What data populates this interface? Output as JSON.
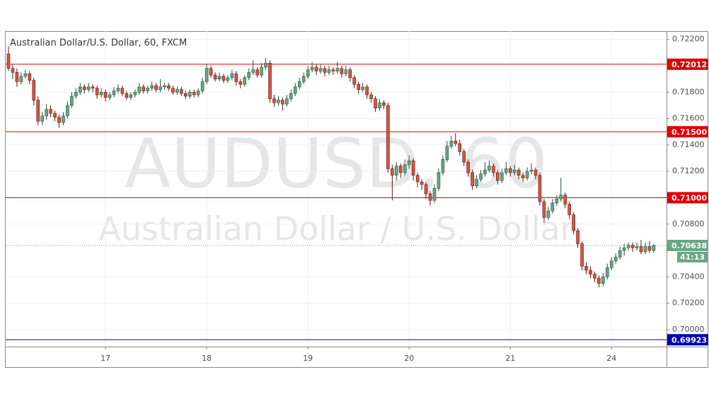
{
  "chart_data": {
    "type": "candlestick",
    "title": "Australian Dollar/U.S. Dollar, 60, FXCM",
    "watermark": "AUDUSD, 60",
    "watermark_subtitle": "Australian Dollar / U.S. Dollar",
    "up_color": "#6ba583",
    "up_border": "#225437",
    "down_color": "#d75442",
    "down_border": "#5b1a13",
    "grid": true,
    "ylim": [
      0.69871,
      0.72263
    ],
    "yticks": [
      {
        "value": 0.722,
        "label": "0.72200"
      },
      {
        "value": 0.718,
        "label": "0.71800"
      },
      {
        "value": 0.716,
        "label": "0.71600"
      },
      {
        "value": 0.714,
        "label": "0.71400"
      },
      {
        "value": 0.712,
        "label": "0.71200"
      },
      {
        "value": 0.708,
        "label": "0.70800"
      },
      {
        "value": 0.704,
        "label": "0.70400"
      },
      {
        "value": 0.702,
        "label": "0.70200"
      },
      {
        "value": 0.7,
        "label": "0.70000"
      }
    ],
    "xticks": [
      "17",
      "18",
      "19",
      "20",
      "21",
      "24"
    ],
    "levels": [
      {
        "value": 0.72012,
        "color": "#e00000"
      },
      {
        "value": 0.715,
        "label": "0.71500",
        "color": "#e00000"
      },
      {
        "value": 0.71,
        "label": "0.71000",
        "color": "#e00000"
      },
      {
        "value": 0.69923,
        "color": "#0000b0"
      }
    ],
    "last_price": 0.70638,
    "last_price_color": "#6ba583",
    "countdown": "41:13",
    "candles": [
      [
        0.7209,
        0.7215,
        0.7196,
        0.7198
      ],
      [
        0.7198,
        0.7201,
        0.719,
        0.7195
      ],
      [
        0.7195,
        0.7198,
        0.7184,
        0.7188
      ],
      [
        0.7188,
        0.7195,
        0.7186,
        0.7192
      ],
      [
        0.7192,
        0.7197,
        0.719,
        0.7194
      ],
      [
        0.7194,
        0.7196,
        0.7186,
        0.7189
      ],
      [
        0.7189,
        0.7191,
        0.717,
        0.7174
      ],
      [
        0.7174,
        0.7177,
        0.7155,
        0.7158
      ],
      [
        0.7158,
        0.7165,
        0.7155,
        0.7162
      ],
      [
        0.7162,
        0.7171,
        0.7159,
        0.7167
      ],
      [
        0.7167,
        0.717,
        0.7161,
        0.7164
      ],
      [
        0.7164,
        0.7166,
        0.7158,
        0.7161
      ],
      [
        0.7161,
        0.7163,
        0.7153,
        0.7157
      ],
      [
        0.7157,
        0.7165,
        0.7155,
        0.7162
      ],
      [
        0.7162,
        0.7173,
        0.716,
        0.717
      ],
      [
        0.717,
        0.718,
        0.7168,
        0.7177
      ],
      [
        0.7177,
        0.7183,
        0.7175,
        0.718
      ],
      [
        0.718,
        0.7187,
        0.7178,
        0.7184
      ],
      [
        0.7184,
        0.7186,
        0.7179,
        0.7182
      ],
      [
        0.7182,
        0.7187,
        0.718,
        0.7184
      ],
      [
        0.7184,
        0.7186,
        0.718,
        0.7183
      ],
      [
        0.7183,
        0.7185,
        0.7175,
        0.7178
      ],
      [
        0.7178,
        0.7183,
        0.7176,
        0.718
      ],
      [
        0.718,
        0.7182,
        0.7173,
        0.7176
      ],
      [
        0.7176,
        0.718,
        0.7174,
        0.7178
      ],
      [
        0.7178,
        0.7184,
        0.7176,
        0.7181
      ],
      [
        0.7181,
        0.7186,
        0.7179,
        0.7183
      ],
      [
        0.7183,
        0.7185,
        0.7177,
        0.7179
      ],
      [
        0.7179,
        0.7181,
        0.7174,
        0.7176
      ],
      [
        0.7176,
        0.718,
        0.7174,
        0.7178
      ],
      [
        0.7178,
        0.7182,
        0.7176,
        0.718
      ],
      [
        0.718,
        0.7187,
        0.7178,
        0.7184
      ],
      [
        0.7184,
        0.7186,
        0.7179,
        0.7181
      ],
      [
        0.7181,
        0.7185,
        0.7179,
        0.7183
      ],
      [
        0.7183,
        0.7188,
        0.7181,
        0.7185
      ],
      [
        0.7185,
        0.7187,
        0.718,
        0.7182
      ],
      [
        0.7182,
        0.719,
        0.718,
        0.7184
      ],
      [
        0.7184,
        0.7187,
        0.7182,
        0.7185
      ],
      [
        0.7185,
        0.7187,
        0.7181,
        0.7183
      ],
      [
        0.7183,
        0.7185,
        0.7178,
        0.718
      ],
      [
        0.718,
        0.7184,
        0.7178,
        0.7182
      ],
      [
        0.7182,
        0.7184,
        0.7177,
        0.7179
      ],
      [
        0.7179,
        0.7181,
        0.7175,
        0.7177
      ],
      [
        0.7177,
        0.7182,
        0.7175,
        0.718
      ],
      [
        0.718,
        0.7182,
        0.7176,
        0.7178
      ],
      [
        0.7178,
        0.7183,
        0.7176,
        0.7181
      ],
      [
        0.7181,
        0.7191,
        0.7179,
        0.7188
      ],
      [
        0.7188,
        0.7201,
        0.7186,
        0.7198
      ],
      [
        0.7198,
        0.72,
        0.7191,
        0.7193
      ],
      [
        0.7193,
        0.7195,
        0.7188,
        0.719
      ],
      [
        0.719,
        0.7195,
        0.7188,
        0.7192
      ],
      [
        0.7192,
        0.7194,
        0.7187,
        0.7189
      ],
      [
        0.7189,
        0.7193,
        0.7187,
        0.7191
      ],
      [
        0.7191,
        0.7197,
        0.7189,
        0.7194
      ],
      [
        0.7194,
        0.7196,
        0.7185,
        0.7188
      ],
      [
        0.7188,
        0.719,
        0.7183,
        0.7186
      ],
      [
        0.7186,
        0.7193,
        0.7184,
        0.7191
      ],
      [
        0.7191,
        0.7198,
        0.7189,
        0.7195
      ],
      [
        0.7195,
        0.7204,
        0.7193,
        0.7197
      ],
      [
        0.7197,
        0.7199,
        0.7191,
        0.7193
      ],
      [
        0.7193,
        0.7202,
        0.7191,
        0.7199
      ],
      [
        0.7199,
        0.7206,
        0.7197,
        0.7202
      ],
      [
        0.7202,
        0.7204,
        0.7172,
        0.7175
      ],
      [
        0.7175,
        0.7178,
        0.7169,
        0.7172
      ],
      [
        0.7172,
        0.7177,
        0.717,
        0.7174
      ],
      [
        0.7174,
        0.7176,
        0.7166,
        0.7171
      ],
      [
        0.7171,
        0.7178,
        0.7169,
        0.7175
      ],
      [
        0.7175,
        0.7182,
        0.7173,
        0.7179
      ],
      [
        0.7179,
        0.7187,
        0.7177,
        0.7184
      ],
      [
        0.7184,
        0.7191,
        0.7182,
        0.7188
      ],
      [
        0.7188,
        0.7195,
        0.7186,
        0.7192
      ],
      [
        0.7192,
        0.72,
        0.719,
        0.7197
      ],
      [
        0.7197,
        0.7203,
        0.7195,
        0.7199
      ],
      [
        0.7199,
        0.7201,
        0.7193,
        0.7196
      ],
      [
        0.7196,
        0.7201,
        0.7194,
        0.7198
      ],
      [
        0.7198,
        0.72,
        0.7192,
        0.7195
      ],
      [
        0.7195,
        0.72,
        0.7193,
        0.7197
      ],
      [
        0.7197,
        0.7199,
        0.7193,
        0.7196
      ],
      [
        0.7196,
        0.7203,
        0.7194,
        0.7198
      ],
      [
        0.7198,
        0.72,
        0.7191,
        0.7194
      ],
      [
        0.7194,
        0.72,
        0.7192,
        0.7197
      ],
      [
        0.7197,
        0.7199,
        0.7188,
        0.7191
      ],
      [
        0.7191,
        0.7193,
        0.7183,
        0.7186
      ],
      [
        0.7186,
        0.7188,
        0.7179,
        0.7182
      ],
      [
        0.7182,
        0.7187,
        0.718,
        0.7184
      ],
      [
        0.7184,
        0.7186,
        0.7175,
        0.7178
      ],
      [
        0.7178,
        0.718,
        0.7172,
        0.7175
      ],
      [
        0.7175,
        0.7177,
        0.7165,
        0.7168
      ],
      [
        0.7168,
        0.7175,
        0.7166,
        0.7172
      ],
      [
        0.7172,
        0.7174,
        0.7167,
        0.717
      ],
      [
        0.717,
        0.7172,
        0.7119,
        0.7122
      ],
      [
        0.7122,
        0.7125,
        0.7098,
        0.7117
      ],
      [
        0.7117,
        0.7127,
        0.7113,
        0.7124
      ],
      [
        0.7124,
        0.7126,
        0.7115,
        0.7119
      ],
      [
        0.7119,
        0.7129,
        0.7117,
        0.7125
      ],
      [
        0.7125,
        0.7132,
        0.7122,
        0.7128
      ],
      [
        0.7128,
        0.713,
        0.7113,
        0.7117
      ],
      [
        0.7117,
        0.7119,
        0.7108,
        0.7112
      ],
      [
        0.7112,
        0.7114,
        0.7106,
        0.711
      ],
      [
        0.711,
        0.7112,
        0.7099,
        0.7103
      ],
      [
        0.7103,
        0.7105,
        0.7094,
        0.7098
      ],
      [
        0.7098,
        0.711,
        0.7096,
        0.7107
      ],
      [
        0.7107,
        0.7122,
        0.7105,
        0.7119
      ],
      [
        0.7119,
        0.7132,
        0.7117,
        0.7129
      ],
      [
        0.7129,
        0.7143,
        0.7127,
        0.7139
      ],
      [
        0.7139,
        0.7147,
        0.7137,
        0.7143
      ],
      [
        0.7143,
        0.7149,
        0.7139,
        0.7141
      ],
      [
        0.7141,
        0.7144,
        0.7132,
        0.7135
      ],
      [
        0.7135,
        0.7137,
        0.7124,
        0.7127
      ],
      [
        0.7127,
        0.7129,
        0.7116,
        0.7119
      ],
      [
        0.7119,
        0.7121,
        0.7106,
        0.7109
      ],
      [
        0.7109,
        0.7117,
        0.7107,
        0.7114
      ],
      [
        0.7114,
        0.7121,
        0.7112,
        0.7118
      ],
      [
        0.7118,
        0.7127,
        0.7116,
        0.7121
      ],
      [
        0.7121,
        0.7128,
        0.7119,
        0.7124
      ],
      [
        0.7124,
        0.7126,
        0.7116,
        0.7119
      ],
      [
        0.7119,
        0.7121,
        0.711,
        0.7113
      ],
      [
        0.7113,
        0.7122,
        0.7111,
        0.7119
      ],
      [
        0.7119,
        0.7127,
        0.7117,
        0.7122
      ],
      [
        0.7122,
        0.7124,
        0.7116,
        0.7119
      ],
      [
        0.7119,
        0.7125,
        0.7117,
        0.7121
      ],
      [
        0.7121,
        0.7123,
        0.7114,
        0.7117
      ],
      [
        0.7117,
        0.7119,
        0.7112,
        0.7115
      ],
      [
        0.7115,
        0.7123,
        0.7113,
        0.712
      ],
      [
        0.712,
        0.7126,
        0.7118,
        0.7121
      ],
      [
        0.7121,
        0.7123,
        0.7114,
        0.7117
      ],
      [
        0.7117,
        0.7119,
        0.7094,
        0.7097
      ],
      [
        0.7097,
        0.7099,
        0.7081,
        0.7085
      ],
      [
        0.7085,
        0.7093,
        0.7083,
        0.709
      ],
      [
        0.709,
        0.7099,
        0.7088,
        0.7096
      ],
      [
        0.7096,
        0.7102,
        0.7094,
        0.7099
      ],
      [
        0.7099,
        0.7115,
        0.7097,
        0.7102
      ],
      [
        0.7102,
        0.7104,
        0.7092,
        0.7095
      ],
      [
        0.7095,
        0.7097,
        0.7084,
        0.7087
      ],
      [
        0.7087,
        0.7089,
        0.7072,
        0.7075
      ],
      [
        0.7075,
        0.7077,
        0.7062,
        0.7065
      ],
      [
        0.7065,
        0.7067,
        0.7045,
        0.7048
      ],
      [
        0.7048,
        0.7051,
        0.7042,
        0.7045
      ],
      [
        0.7045,
        0.7048,
        0.7039,
        0.7042
      ],
      [
        0.7042,
        0.7044,
        0.7036,
        0.7039
      ],
      [
        0.7039,
        0.7041,
        0.7032,
        0.7035
      ],
      [
        0.7035,
        0.7043,
        0.7033,
        0.704
      ],
      [
        0.704,
        0.705,
        0.7038,
        0.7047
      ],
      [
        0.7047,
        0.7055,
        0.7045,
        0.7052
      ],
      [
        0.7052,
        0.7058,
        0.705,
        0.7055
      ],
      [
        0.7055,
        0.7063,
        0.7053,
        0.706
      ],
      [
        0.706,
        0.7065,
        0.7056,
        0.7062
      ],
      [
        0.7062,
        0.7066,
        0.706,
        0.7064
      ],
      [
        0.7064,
        0.7066,
        0.7059,
        0.7062
      ],
      [
        0.7062,
        0.7066,
        0.706,
        0.7063
      ],
      [
        0.7063,
        0.7068,
        0.7057,
        0.7059
      ],
      [
        0.7059,
        0.7066,
        0.7057,
        0.7063
      ],
      [
        0.7063,
        0.7067,
        0.7058,
        0.706
      ],
      [
        0.706,
        0.7065,
        0.7058,
        0.70638
      ]
    ]
  }
}
